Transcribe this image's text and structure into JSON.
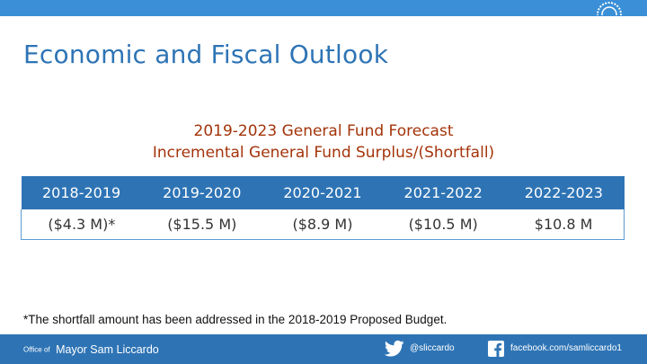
{
  "slide": {
    "title": "Economic and Fiscal Outlook"
  },
  "table": {
    "caption_line1": "2019-2023 General Fund Forecast",
    "caption_line2": "Incremental General Fund Surplus/(Shortfall)",
    "headers": [
      "2018-2019",
      "2019-2020",
      "2020-2021",
      "2021-2022",
      "2022-2023"
    ],
    "values": [
      "($4.3 M)*",
      "($15.5 M)",
      "($8.9 M)",
      "($10.5 M)",
      "$10.8 M"
    ]
  },
  "footnote": "*The shortfall amount has been addressed in the 2018-2019 Proposed Budget.",
  "footer": {
    "office_prefix": "Office of",
    "office_name": "Mayor Sam Liccardo",
    "twitter_handle": "@sliccardo",
    "facebook_url": "facebook.com/samliccardo1"
  },
  "colors": {
    "accent_blue": "#2e74b5",
    "caption_red": "#a4340a",
    "top_bar": "#3a8fd6"
  },
  "icons": {
    "seal": "city-seal-icon",
    "twitter": "twitter-bird-icon",
    "facebook": "facebook-f-icon"
  }
}
